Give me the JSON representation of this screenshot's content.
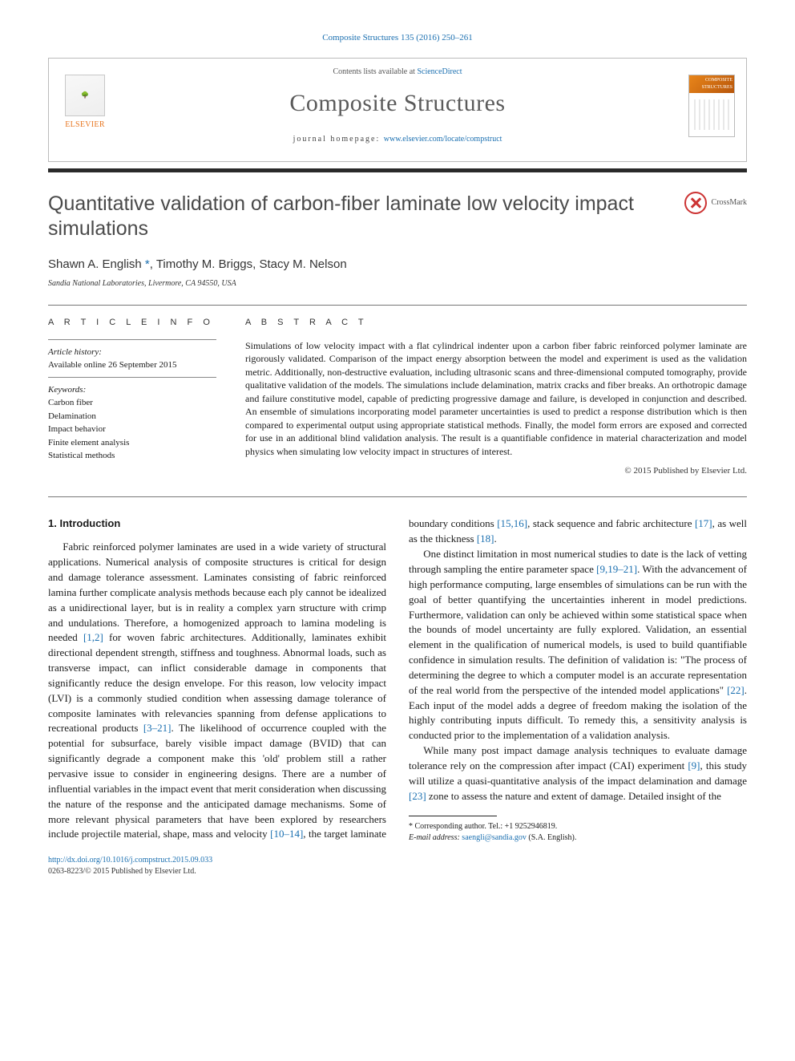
{
  "colors": {
    "link": "#1a6fb0",
    "accent": "#e87722",
    "rule": "#2a2a2a",
    "title": "#4a4a4a",
    "text": "#1a1a1a"
  },
  "header": {
    "citation": "Composite Structures 135 (2016) 250–261",
    "contents_line_prefix": "Contents lists available at ",
    "contents_line_link": "ScienceDirect",
    "journal": "Composite Structures",
    "homepage_label": "journal homepage: ",
    "homepage_url": "www.elsevier.com/locate/compstruct",
    "publisher": "ELSEVIER",
    "cover_label": "COMPOSITE STRUCTURES"
  },
  "paper": {
    "title": "Quantitative validation of carbon-fiber laminate low velocity impact simulations",
    "crossmark": "CrossMark",
    "authors_html": "Shawn A. English <span class='corr'>*</span>, Timothy M. Briggs, Stacy M. Nelson",
    "affiliation": "Sandia National Laboratories, Livermore, CA 94550, USA"
  },
  "article_info": {
    "heading": "A R T I C L E   I N F O",
    "history_label": "Article history:",
    "history_value": "Available online 26 September 2015",
    "keywords_label": "Keywords:",
    "keywords": [
      "Carbon fiber",
      "Delamination",
      "Impact behavior",
      "Finite element analysis",
      "Statistical methods"
    ]
  },
  "abstract": {
    "heading": "A B S T R A C T",
    "text": "Simulations of low velocity impact with a flat cylindrical indenter upon a carbon fiber fabric reinforced polymer laminate are rigorously validated. Comparison of the impact energy absorption between the model and experiment is used as the validation metric. Additionally, non-destructive evaluation, including ultrasonic scans and three-dimensional computed tomography, provide qualitative validation of the models. The simulations include delamination, matrix cracks and fiber breaks. An orthotropic damage and failure constitutive model, capable of predicting progressive damage and failure, is developed in conjunction and described. An ensemble of simulations incorporating model parameter uncertainties is used to predict a response distribution which is then compared to experimental output using appropriate statistical methods. Finally, the model form errors are exposed and corrected for use in an additional blind validation analysis. The result is a quantifiable confidence in material characterization and model physics when simulating low velocity impact in structures of interest.",
    "copyright": "© 2015 Published by Elsevier Ltd."
  },
  "body": {
    "section_heading": "1. Introduction",
    "col1_p1": "Fabric reinforced polymer laminates are used in a wide variety of structural applications. Numerical analysis of composite structures is critical for design and damage tolerance assessment. Laminates consisting of fabric reinforced lamina further complicate analysis methods because each ply cannot be idealized as a unidirectional layer, but is in reality a complex yarn structure with crimp and undulations. Therefore, a homogenized approach to lamina modeling is needed ",
    "ref_1_2": "[1,2]",
    "col1_p1b": " for woven fabric architectures. Additionally, laminates exhibit directional dependent strength, stiffness and toughness. Abnormal loads, such as transverse impact, can inflict considerable damage in components that significantly reduce the design envelope. For this reason, low velocity impact (LVI) is a commonly studied condition when assessing damage tolerance of composite laminates with relevancies spanning from defense applications to recreational products ",
    "ref_3_21": "[3–21]",
    "col1_p1c": ". The likelihood of occurrence coupled with the potential for subsurface, barely visible impact damage (BVID) that can significantly degrade a component make this 'old' problem still a rather pervasive issue to consider in engineering designs. There are a number of influential variables in the impact event that merit consideration when discussing the nature of the response and the anticipated",
    "col2_p1a": "damage mechanisms. Some of more relevant physical parameters that have been explored by researchers include projectile material, shape, mass and velocity ",
    "ref_10_14": "[10–14]",
    "col2_p1b": ", the target laminate boundary conditions ",
    "ref_15_16": "[15,16]",
    "col2_p1c": ", stack sequence and fabric architecture ",
    "ref_17": "[17]",
    "col2_p1d": ", as well as the thickness ",
    "ref_18": "[18]",
    "col2_p1e": ".",
    "col2_p2a": "One distinct limitation in most numerical studies to date is the lack of vetting through sampling the entire parameter space ",
    "ref_9_19_21": "[9,19–21]",
    "col2_p2b": ". With the advancement of high performance computing, large ensembles of simulations can be run with the goal of better quantifying the uncertainties inherent in model predictions. Furthermore, validation can only be achieved within some statistical space when the bounds of model uncertainty are fully explored. Validation, an essential element in the qualification of numerical models, is used to build quantifiable confidence in simulation results. The definition of validation is: \"The process of determining the degree to which a computer model is an accurate representation of the real world from the perspective of the intended model applications\" ",
    "ref_22": "[22]",
    "col2_p2c": ". Each input of the model adds a degree of freedom making the isolation of the highly contributing inputs difficult. To remedy this, a sensitivity analysis is conducted prior to the implementation of a validation analysis.",
    "col2_p3a": "While many post impact damage analysis techniques to evaluate damage tolerance rely on the compression after impact (CAI) experiment ",
    "ref_9": "[9]",
    "col2_p3b": ", this study will utilize a quasi-quantitative analysis of the impact delamination and damage ",
    "ref_23": "[23]",
    "col2_p3c": " zone to assess the nature and extent of damage. Detailed insight of the"
  },
  "footnotes": {
    "corr_label": "* Corresponding author. Tel.: +1 9252946819.",
    "email_label": "E-mail address: ",
    "email": "saengli@sandia.gov",
    "email_who": " (S.A. English)."
  },
  "footer": {
    "doi": "http://dx.doi.org/10.1016/j.compstruct.2015.09.033",
    "issn_line": "0263-8223/© 2015 Published by Elsevier Ltd."
  }
}
